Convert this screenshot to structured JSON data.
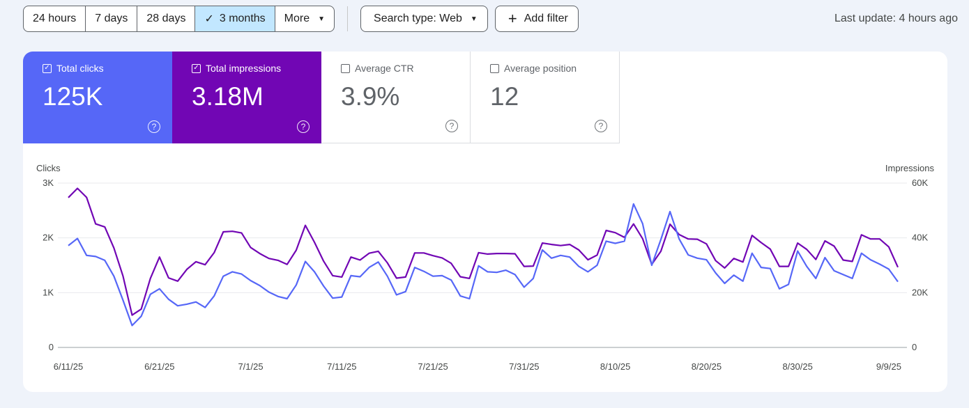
{
  "filters": {
    "ranges": [
      {
        "label": "24 hours",
        "selected": false
      },
      {
        "label": "7 days",
        "selected": false
      },
      {
        "label": "28 days",
        "selected": false
      },
      {
        "label": "3 months",
        "selected": true
      },
      {
        "label": "More",
        "selected": false
      }
    ],
    "search_type": "Search type: Web",
    "add_filter": "Add filter",
    "last_update": "Last update: 4 hours ago"
  },
  "metrics": [
    {
      "label": "Total clicks",
      "value": "125K",
      "checked": true
    },
    {
      "label": "Total impressions",
      "value": "3.18M",
      "checked": true
    },
    {
      "label": "Average CTR",
      "value": "3.9%",
      "checked": false
    },
    {
      "label": "Average position",
      "value": "12",
      "checked": false
    }
  ],
  "colors": {
    "clicks": "#5667f7",
    "impressions": "#7106b4",
    "selected_range": "#c2e7ff"
  },
  "chart_data": {
    "type": "line",
    "left_axis_title": "Clicks",
    "right_axis_title": "Impressions",
    "left_ticks": [
      "0",
      "1K",
      "2K",
      "3K"
    ],
    "right_ticks": [
      "0",
      "20K",
      "40K",
      "60K"
    ],
    "ylim_left": [
      0,
      3000
    ],
    "ylim_right": [
      0,
      60000
    ],
    "x_tick_labels": [
      "6/11/25",
      "6/21/25",
      "7/1/25",
      "7/11/25",
      "7/21/25",
      "7/31/25",
      "8/10/25",
      "8/20/25",
      "8/30/25",
      "9/9/25"
    ],
    "x_tick_index": [
      0,
      10,
      20,
      30,
      40,
      50,
      60,
      70,
      80,
      90
    ],
    "grid": true,
    "series": [
      {
        "name": "Clicks",
        "axis": "left",
        "values": [
          1860,
          1990,
          1680,
          1660,
          1590,
          1300,
          860,
          400,
          570,
          970,
          1070,
          880,
          760,
          790,
          830,
          730,
          940,
          1300,
          1380,
          1340,
          1220,
          1130,
          1010,
          930,
          890,
          1140,
          1570,
          1380,
          1120,
          900,
          920,
          1310,
          1290,
          1460,
          1560,
          1300,
          960,
          1020,
          1460,
          1390,
          1300,
          1310,
          1230,
          940,
          890,
          1490,
          1380,
          1370,
          1410,
          1330,
          1100,
          1260,
          1780,
          1630,
          1680,
          1650,
          1480,
          1380,
          1500,
          1940,
          1900,
          1940,
          2620,
          2260,
          1500,
          1970,
          2480,
          1980,
          1690,
          1630,
          1600,
          1360,
          1170,
          1320,
          1210,
          1720,
          1460,
          1440,
          1070,
          1150,
          1760,
          1480,
          1260,
          1640,
          1400,
          1330,
          1260,
          1720,
          1600,
          1520,
          1430,
          1200
        ]
      },
      {
        "name": "Impressions",
        "axis": "right",
        "values": [
          54700,
          58100,
          54800,
          45100,
          44000,
          36300,
          26000,
          11800,
          14000,
          25200,
          33000,
          25400,
          24200,
          28500,
          31300,
          30200,
          34600,
          42200,
          42400,
          41800,
          36500,
          34300,
          32500,
          31800,
          30300,
          35500,
          44600,
          38400,
          31500,
          26200,
          25700,
          33000,
          31900,
          34400,
          35100,
          30900,
          25300,
          25700,
          34500,
          34500,
          33500,
          32700,
          30700,
          25800,
          25200,
          34600,
          34100,
          34300,
          34300,
          34200,
          29600,
          29700,
          38100,
          37600,
          37200,
          37600,
          35600,
          32000,
          33700,
          42700,
          41900,
          40200,
          45100,
          39700,
          30300,
          35100,
          45000,
          41200,
          39600,
          39500,
          37800,
          31700,
          29000,
          32500,
          31200,
          40900,
          38300,
          35900,
          29600,
          29600,
          38100,
          35800,
          32100,
          38900,
          37000,
          31900,
          31400,
          41100,
          39600,
          39600,
          36700,
          29300
        ]
      }
    ]
  }
}
